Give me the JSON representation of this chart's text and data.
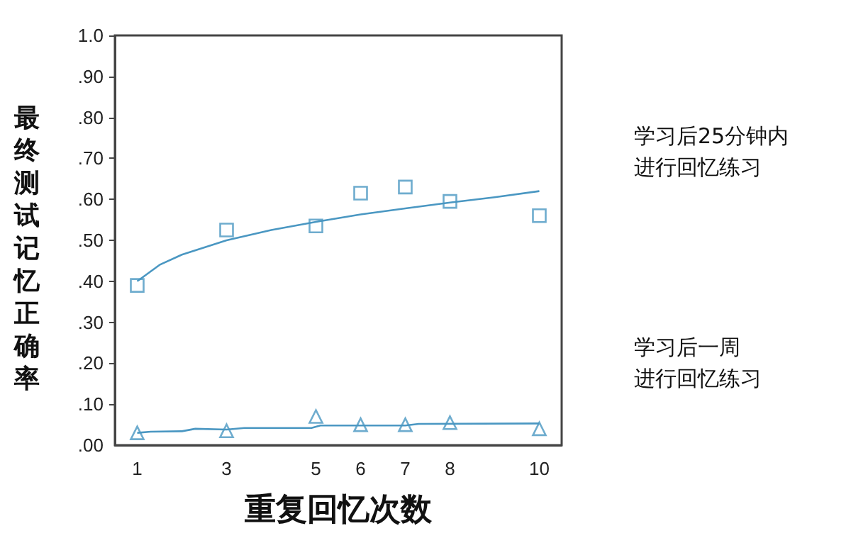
{
  "chart_data": {
    "type": "scatter",
    "xlabel": "重复回忆次数",
    "ylabel": "最终测试记忆正确率",
    "x": [
      1,
      3,
      5,
      6,
      7,
      8,
      10
    ],
    "series": [
      {
        "name": "学习后25分钟内进行回忆练习",
        "color": "#4a97c2",
        "marker": "square",
        "values": [
          0.39,
          0.525,
          0.535,
          0.615,
          0.63,
          0.595,
          0.56
        ]
      },
      {
        "name": "学习后一周进行回忆练习",
        "color": "#4a97c2",
        "marker": "triangle",
        "values": [
          0.03,
          0.035,
          0.07,
          0.05,
          0.05,
          0.055,
          0.04
        ]
      },
      {
        "type": "line",
        "color": "#4a97c2",
        "x": [
          1,
          1.5,
          2,
          3,
          4,
          5,
          6,
          7,
          8,
          9,
          10
        ],
        "values": [
          0.4,
          0.44,
          0.465,
          0.5,
          0.525,
          0.545,
          0.563,
          0.578,
          0.592,
          0.605,
          0.62
        ]
      },
      {
        "type": "line",
        "color": "#4a97c2",
        "x": [
          1,
          1.3,
          2,
          2.3,
          3,
          3.4,
          4.9,
          5.1,
          7,
          7.3,
          10
        ],
        "values": [
          0.03,
          0.033,
          0.034,
          0.04,
          0.038,
          0.042,
          0.042,
          0.048,
          0.048,
          0.052,
          0.053
        ]
      }
    ],
    "xlim": [
      0.5,
      10.5
    ],
    "xticks": [
      1,
      3,
      5,
      6,
      7,
      8,
      10
    ],
    "ylim": [
      0,
      1
    ],
    "yticks": [
      {
        "value": 0,
        "label": ".00"
      },
      {
        "value": 0.1,
        "label": ".10"
      },
      {
        "value": 0.2,
        "label": ".20"
      },
      {
        "value": 0.3,
        "label": ".30"
      },
      {
        "value": 0.4,
        "label": ".40"
      },
      {
        "value": 0.5,
        "label": ".50"
      },
      {
        "value": 0.6,
        "label": ".60"
      },
      {
        "value": 0.7,
        "label": ".70"
      },
      {
        "value": 0.8,
        "label": ".80"
      },
      {
        "value": 0.9,
        "label": ".90"
      },
      {
        "value": 1,
        "label": "1.0"
      }
    ],
    "grid": false,
    "legend": "right"
  }
}
